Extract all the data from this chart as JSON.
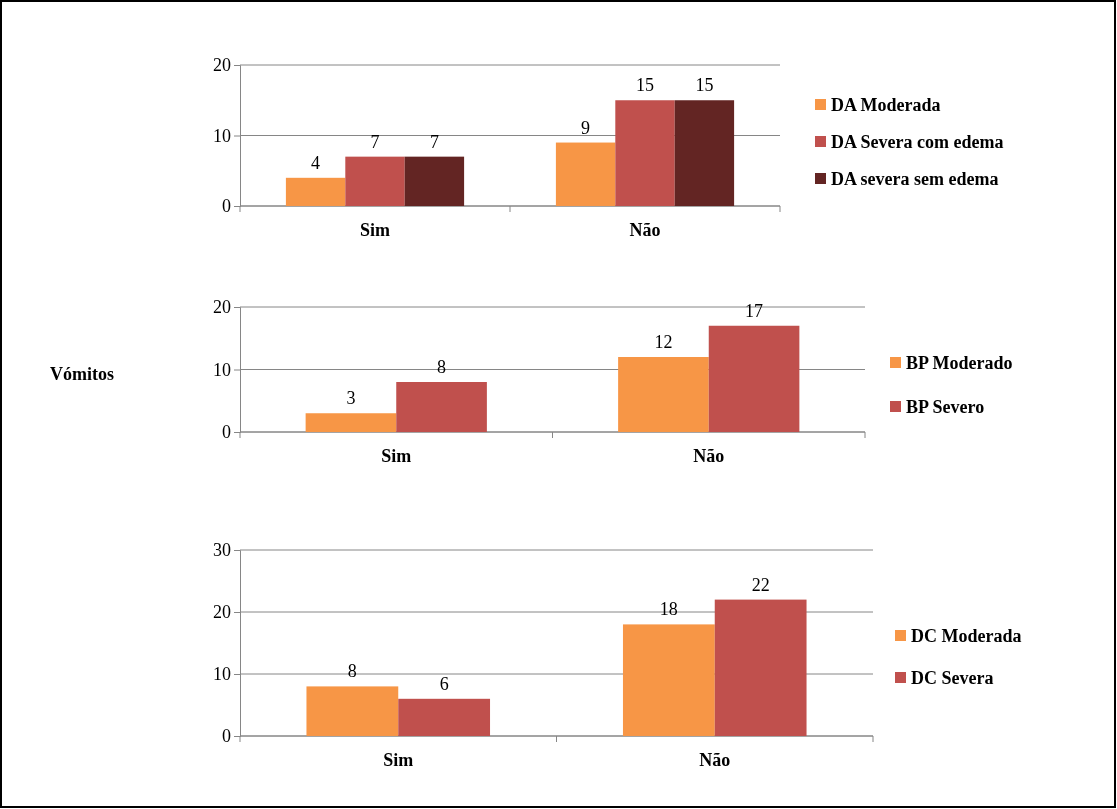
{
  "chart_data": [
    {
      "type": "bar",
      "categories": [
        "Sim",
        "Não"
      ],
      "series": [
        {
          "name": "DA Moderada",
          "color": "#f79646",
          "values": [
            4,
            9
          ]
        },
        {
          "name": "DA Severa com edema",
          "color": "#c0504d",
          "values": [
            7,
            15
          ]
        },
        {
          "name": "DA severa sem edema",
          "color": "#632523",
          "values": [
            7,
            15
          ]
        }
      ],
      "ylim": [
        0,
        20
      ],
      "yticks": [
        0,
        10,
        20
      ],
      "grid": "y",
      "legend": "right",
      "data_labels": true
    },
    {
      "type": "bar",
      "ylabel": "Vómitos",
      "categories": [
        "Sim",
        "Não"
      ],
      "series": [
        {
          "name": "BP Moderado",
          "color": "#f79646",
          "values": [
            3,
            12
          ]
        },
        {
          "name": "BP Severo",
          "color": "#c0504d",
          "values": [
            8,
            17
          ]
        }
      ],
      "ylim": [
        0,
        20
      ],
      "yticks": [
        0,
        10,
        20
      ],
      "grid": "y",
      "legend": "right",
      "data_labels": true
    },
    {
      "type": "bar",
      "categories": [
        "Sim",
        "Não"
      ],
      "series": [
        {
          "name": "DC Moderada",
          "color": "#f79646",
          "values": [
            8,
            18
          ]
        },
        {
          "name": "DC Severa",
          "color": "#c0504d",
          "values": [
            6,
            22
          ]
        }
      ],
      "ylim": [
        0,
        30
      ],
      "yticks": [
        0,
        10,
        20,
        30
      ],
      "grid": "y",
      "legend": "right",
      "data_labels": true
    }
  ]
}
